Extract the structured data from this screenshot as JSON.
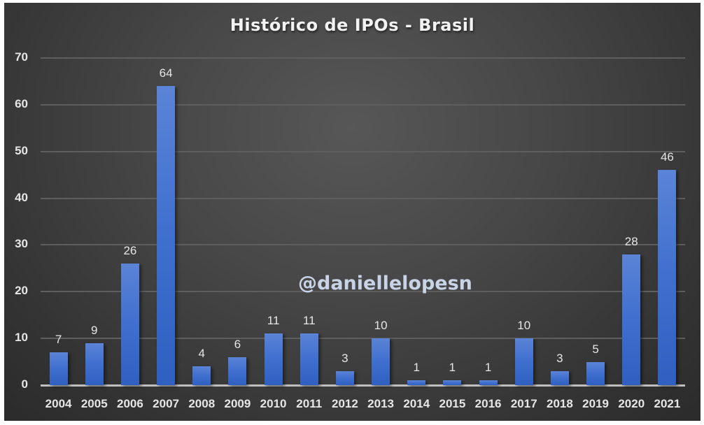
{
  "chart_data": {
    "type": "bar",
    "title": "Histórico de IPOs - Brasil",
    "xlabel": "",
    "ylabel": "",
    "categories": [
      "2004",
      "2005",
      "2006",
      "2007",
      "2008",
      "2009",
      "2010",
      "2011",
      "2012",
      "2013",
      "2014",
      "2015",
      "2016",
      "2017",
      "2018",
      "2019",
      "2020",
      "2021"
    ],
    "values": [
      7,
      9,
      26,
      64,
      4,
      6,
      11,
      11,
      3,
      10,
      1,
      1,
      1,
      10,
      3,
      5,
      28,
      46
    ],
    "ylim": [
      0,
      70
    ],
    "yticks": [
      0,
      10,
      20,
      30,
      40,
      50,
      60,
      70
    ],
    "grid": true,
    "legend": null,
    "data_labels": true,
    "bar_color": "#4472C4",
    "background": "#3a3a3a",
    "annotations": [
      "@daniellelopesn"
    ]
  },
  "watermark": "@daniellelopesn"
}
